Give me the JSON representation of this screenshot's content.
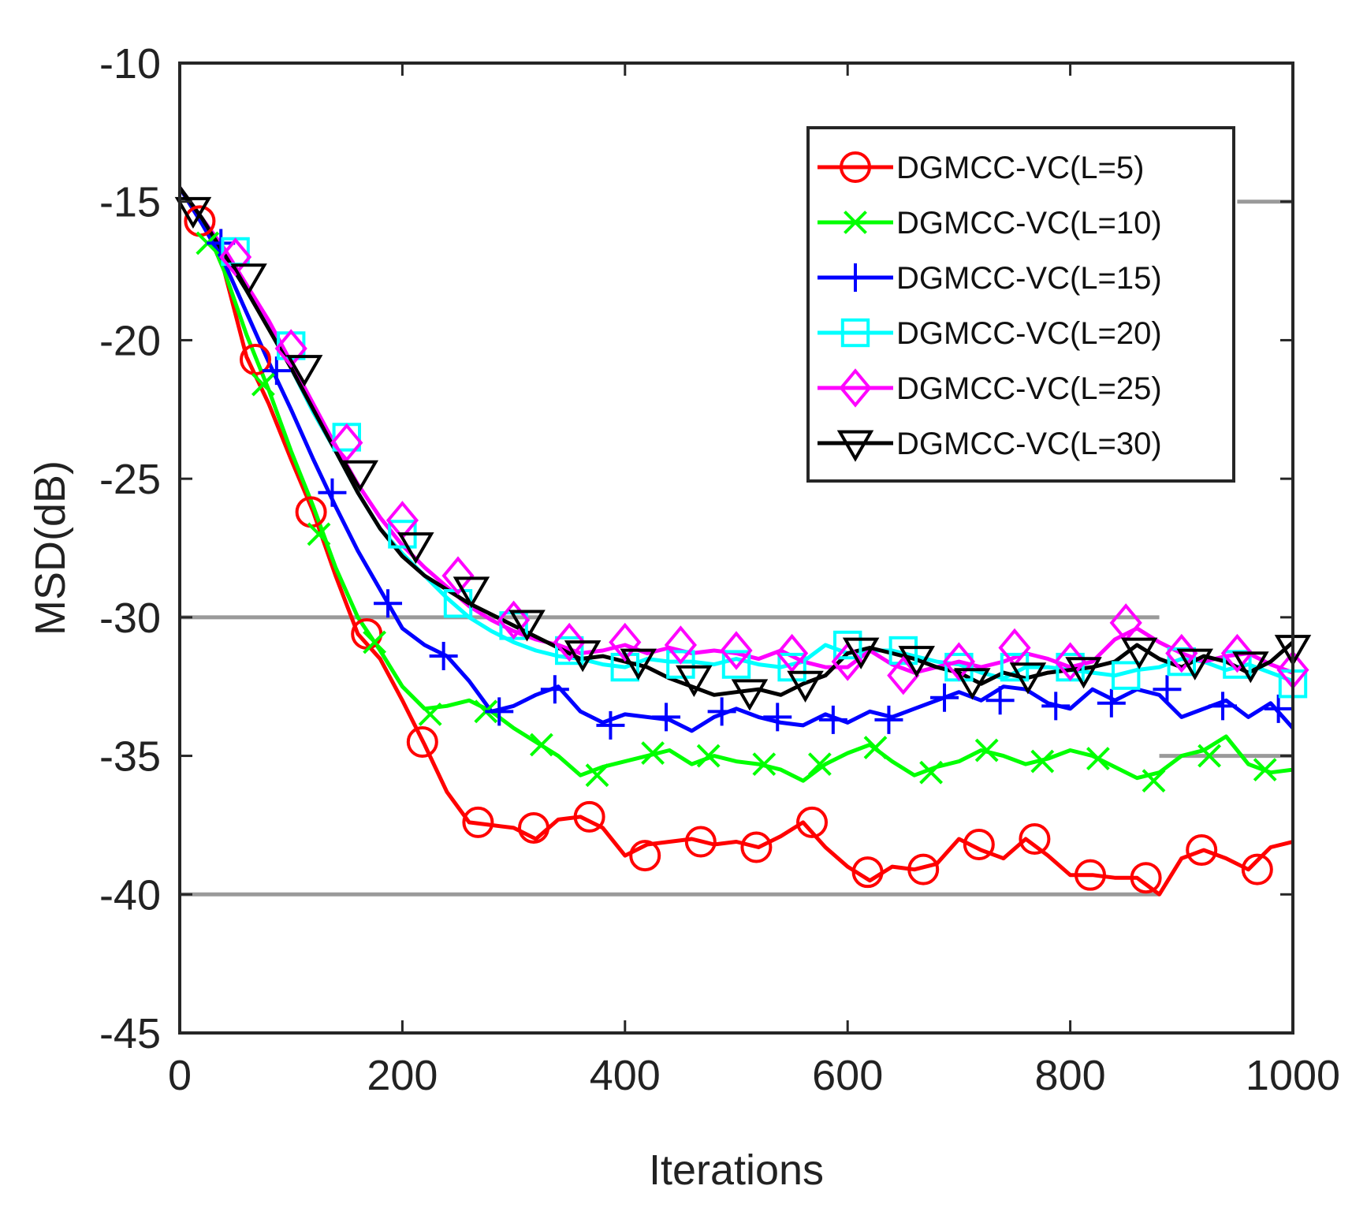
{
  "chart_data": {
    "type": "line",
    "xlabel": "Iterations",
    "ylabel": "MSD(dB)",
    "xlim": [
      0,
      1000
    ],
    "ylim": [
      -45,
      -10
    ],
    "xticks": [
      0,
      200,
      400,
      600,
      800,
      1000
    ],
    "yticks": [
      -10,
      -15,
      -20,
      -25,
      -30,
      -35,
      -40,
      -45
    ],
    "xtick_labels": [
      "0",
      "200",
      "400",
      "600",
      "800",
      "1000"
    ],
    "ytick_labels": [
      "-10",
      "-15",
      "-20",
      "-25",
      "-30",
      "-35",
      "-40",
      "-45"
    ],
    "legend_position": "top-right",
    "grid_lines": [
      {
        "y": -15,
        "x_range": [
          950,
          1000
        ]
      },
      {
        "y": -30,
        "x_range": [
          0,
          880
        ]
      },
      {
        "y": -35,
        "x_range": [
          880,
          1000
        ]
      },
      {
        "y": -40,
        "x_range": [
          0,
          880
        ]
      }
    ],
    "series": [
      {
        "name": "DGMCC-VC(L=5)",
        "color": "#ff0000",
        "marker": "circle",
        "x": [
          0,
          20,
          40,
          60,
          80,
          100,
          120,
          140,
          160,
          180,
          200,
          220,
          240,
          260,
          280,
          300,
          320,
          340,
          360,
          380,
          400,
          420,
          440,
          460,
          480,
          500,
          520,
          540,
          560,
          580,
          600,
          620,
          640,
          660,
          680,
          700,
          720,
          740,
          760,
          780,
          800,
          820,
          840,
          860,
          880,
          900,
          920,
          940,
          960,
          980,
          1000
        ],
        "y": [
          -14.5,
          -15.6,
          -17.5,
          -20.6,
          -22.3,
          -24.3,
          -26.2,
          -28.5,
          -30.6,
          -31.5,
          -33.0,
          -34.6,
          -36.3,
          -37.4,
          -37.5,
          -37.6,
          -38.0,
          -37.3,
          -37.2,
          -37.6,
          -38.6,
          -38.2,
          -38.1,
          -38.0,
          -38.2,
          -38.1,
          -38.3,
          -37.9,
          -37.4,
          -38.3,
          -39.0,
          -39.5,
          -39.0,
          -39.1,
          -38.9,
          -38.0,
          -38.4,
          -38.7,
          -38.0,
          -38.6,
          -39.3,
          -39.3,
          -39.4,
          -39.4,
          -40.0,
          -38.7,
          -38.4,
          -38.7,
          -39.1,
          -38.3,
          -38.1
        ],
        "marker_x": [
          18,
          68,
          118,
          168,
          218,
          268,
          318,
          368,
          418,
          468,
          518,
          568,
          618,
          668,
          718,
          768,
          818,
          868,
          918,
          968
        ],
        "marker_y": [
          -15.7,
          -20.7,
          -26.2,
          -30.6,
          -34.5,
          -37.4,
          -37.6,
          -37.2,
          -38.6,
          -38.1,
          -38.3,
          -37.4,
          -39.2,
          -39.1,
          -38.2,
          -38.0,
          -39.3,
          -39.4,
          -38.4,
          -39.1
        ]
      },
      {
        "name": "DGMCC-VC(L=10)",
        "color": "#00ff00",
        "marker": "x",
        "x": [
          0,
          20,
          40,
          60,
          80,
          100,
          120,
          140,
          160,
          180,
          200,
          220,
          240,
          260,
          280,
          300,
          320,
          340,
          360,
          380,
          400,
          420,
          440,
          460,
          480,
          500,
          520,
          540,
          560,
          580,
          600,
          620,
          640,
          660,
          680,
          700,
          720,
          740,
          760,
          780,
          800,
          820,
          840,
          860,
          880,
          900,
          920,
          940,
          960,
          980,
          1000
        ],
        "y": [
          -14.5,
          -15.6,
          -17.5,
          -19.8,
          -21.8,
          -24.0,
          -26.0,
          -28.2,
          -30.0,
          -31.2,
          -32.5,
          -33.3,
          -33.2,
          -33.0,
          -33.4,
          -34.0,
          -34.5,
          -35.0,
          -35.7,
          -35.4,
          -35.2,
          -35.0,
          -34.8,
          -35.3,
          -35.0,
          -35.2,
          -35.3,
          -35.5,
          -35.9,
          -35.3,
          -34.9,
          -34.6,
          -35.2,
          -35.7,
          -35.4,
          -35.2,
          -34.8,
          -35.0,
          -35.3,
          -35.1,
          -34.8,
          -35.0,
          -35.4,
          -35.8,
          -35.6,
          -35.0,
          -34.8,
          -34.3,
          -35.3,
          -35.6,
          -35.5
        ],
        "marker_x": [
          25,
          75,
          125,
          175,
          225,
          275,
          325,
          375,
          425,
          475,
          525,
          575,
          625,
          675,
          725,
          775,
          825,
          875,
          925,
          975
        ],
        "marker_y": [
          -16.5,
          -21.6,
          -27.0,
          -30.9,
          -33.5,
          -33.4,
          -34.6,
          -35.7,
          -34.9,
          -35.0,
          -35.3,
          -35.3,
          -34.7,
          -35.6,
          -34.8,
          -35.2,
          -35.1,
          -35.9,
          -35.0,
          -35.5
        ]
      },
      {
        "name": "DGMCC-VC(L=15)",
        "color": "#0000ff",
        "marker": "plus",
        "x": [
          0,
          20,
          40,
          60,
          80,
          100,
          120,
          140,
          160,
          180,
          200,
          220,
          240,
          260,
          280,
          300,
          320,
          340,
          360,
          380,
          400,
          420,
          440,
          460,
          480,
          500,
          520,
          540,
          560,
          580,
          600,
          620,
          640,
          660,
          680,
          700,
          720,
          740,
          760,
          780,
          800,
          820,
          840,
          860,
          880,
          900,
          920,
          940,
          960,
          980,
          1000
        ],
        "y": [
          -14.5,
          -15.8,
          -17.2,
          -19.0,
          -20.8,
          -22.5,
          -24.3,
          -26.0,
          -27.6,
          -29.0,
          -30.4,
          -31.0,
          -31.4,
          -32.3,
          -33.4,
          -33.2,
          -32.8,
          -32.5,
          -33.4,
          -33.8,
          -33.5,
          -33.6,
          -33.7,
          -34.1,
          -33.6,
          -33.3,
          -33.6,
          -33.8,
          -33.9,
          -33.5,
          -33.8,
          -33.4,
          -33.6,
          -33.3,
          -33.0,
          -32.7,
          -33.0,
          -32.5,
          -32.6,
          -33.1,
          -33.3,
          -32.6,
          -33.0,
          -32.6,
          -32.8,
          -33.6,
          -33.3,
          -33.0,
          -33.6,
          -33.1,
          -34.0
        ],
        "marker_x": [
          37,
          87,
          137,
          187,
          237,
          287,
          337,
          387,
          437,
          487,
          537,
          587,
          637,
          687,
          737,
          787,
          837,
          887,
          937,
          987
        ],
        "marker_y": [
          -16.5,
          -21.1,
          -25.5,
          -29.5,
          -31.4,
          -33.4,
          -32.6,
          -33.9,
          -33.6,
          -33.4,
          -33.6,
          -33.7,
          -33.7,
          -32.9,
          -33.0,
          -33.2,
          -33.1,
          -32.6,
          -33.2,
          -33.3
        ]
      },
      {
        "name": "DGMCC-VC(L=20)",
        "color": "#00ffff",
        "marker": "square",
        "x": [
          0,
          20,
          40,
          60,
          80,
          100,
          120,
          140,
          160,
          180,
          200,
          220,
          240,
          260,
          280,
          300,
          320,
          340,
          360,
          380,
          400,
          420,
          440,
          460,
          480,
          500,
          520,
          540,
          560,
          580,
          600,
          620,
          640,
          660,
          680,
          700,
          720,
          740,
          760,
          780,
          800,
          820,
          840,
          860,
          880,
          900,
          920,
          940,
          960,
          980,
          1000
        ],
        "y": [
          -14.5,
          -15.6,
          -16.9,
          -18.2,
          -19.5,
          -21.0,
          -22.6,
          -24.0,
          -25.5,
          -26.8,
          -27.7,
          -28.5,
          -29.3,
          -30.0,
          -30.5,
          -30.9,
          -31.2,
          -31.4,
          -31.5,
          -31.7,
          -31.8,
          -31.5,
          -31.6,
          -31.6,
          -31.7,
          -31.5,
          -31.7,
          -31.8,
          -31.6,
          -31.0,
          -31.3,
          -31.2,
          -31.2,
          -31.4,
          -31.6,
          -31.7,
          -32.0,
          -32.2,
          -31.8,
          -31.8,
          -31.9,
          -32.0,
          -32.1,
          -31.9,
          -31.8,
          -31.5,
          -31.6,
          -31.9,
          -31.7,
          -32.0,
          -32.3
        ],
        "marker_x": [
          50,
          100,
          150,
          200,
          250,
          300,
          350,
          400,
          450,
          500,
          550,
          600,
          650,
          700,
          750,
          800,
          850,
          900,
          950,
          1000
        ],
        "marker_y": [
          -16.8,
          -20.2,
          -23.5,
          -27.0,
          -29.5,
          -30.3,
          -31.2,
          -31.8,
          -31.7,
          -31.7,
          -31.8,
          -31.0,
          -31.2,
          -31.8,
          -31.8,
          -31.8,
          -32.1,
          -31.6,
          -31.7,
          -32.4
        ]
      },
      {
        "name": "DGMCC-VC(L=25)",
        "color": "#ff00ff",
        "marker": "diamond",
        "x": [
          0,
          20,
          40,
          60,
          80,
          100,
          120,
          140,
          160,
          180,
          200,
          220,
          240,
          260,
          280,
          300,
          320,
          340,
          360,
          380,
          400,
          420,
          440,
          460,
          480,
          500,
          520,
          540,
          560,
          580,
          600,
          620,
          640,
          660,
          680,
          700,
          720,
          740,
          760,
          780,
          800,
          820,
          840,
          860,
          880,
          900,
          920,
          940,
          960,
          980,
          1000
        ],
        "y": [
          -14.5,
          -15.6,
          -16.7,
          -18.0,
          -19.3,
          -20.8,
          -22.3,
          -23.8,
          -25.2,
          -26.4,
          -27.4,
          -28.2,
          -28.9,
          -29.6,
          -30.1,
          -30.5,
          -30.8,
          -31.0,
          -31.3,
          -31.2,
          -31.0,
          -31.3,
          -31.1,
          -31.3,
          -31.2,
          -31.3,
          -31.5,
          -31.2,
          -31.6,
          -31.8,
          -31.8,
          -31.2,
          -31.7,
          -32.0,
          -31.8,
          -31.6,
          -31.8,
          -31.6,
          -31.3,
          -31.5,
          -31.8,
          -31.6,
          -30.8,
          -30.4,
          -30.9,
          -31.3,
          -31.6,
          -31.4,
          -31.3,
          -31.7,
          -32.0
        ],
        "marker_x": [
          50,
          100,
          150,
          200,
          250,
          300,
          350,
          400,
          450,
          500,
          550,
          600,
          650,
          700,
          750,
          800,
          850,
          900,
          950,
          1000
        ],
        "marker_y": [
          -17.0,
          -20.3,
          -23.7,
          -26.5,
          -28.5,
          -30.1,
          -30.9,
          -30.9,
          -31.0,
          -31.2,
          -31.3,
          -31.6,
          -32.1,
          -31.6,
          -31.1,
          -31.6,
          -30.2,
          -31.3,
          -31.3,
          -31.9
        ]
      },
      {
        "name": "DGMCC-VC(L=30)",
        "color": "#000000",
        "marker": "triangle-down",
        "x": [
          0,
          20,
          40,
          60,
          80,
          100,
          120,
          140,
          160,
          180,
          200,
          220,
          240,
          260,
          280,
          300,
          320,
          340,
          360,
          380,
          400,
          420,
          440,
          460,
          480,
          500,
          520,
          540,
          560,
          580,
          600,
          620,
          640,
          660,
          680,
          700,
          720,
          740,
          760,
          780,
          800,
          820,
          840,
          860,
          880,
          900,
          920,
          940,
          960,
          980,
          1000
        ],
        "y": [
          -14.5,
          -15.6,
          -16.9,
          -18.2,
          -19.6,
          -21.0,
          -22.5,
          -24.0,
          -25.5,
          -26.8,
          -27.8,
          -28.5,
          -29.0,
          -29.5,
          -29.9,
          -30.3,
          -30.7,
          -31.1,
          -31.5,
          -31.4,
          -31.6,
          -31.8,
          -32.2,
          -32.5,
          -32.8,
          -32.7,
          -32.6,
          -32.8,
          -32.4,
          -32.1,
          -31.3,
          -31.1,
          -31.3,
          -31.5,
          -31.8,
          -32.0,
          -32.4,
          -32.0,
          -32.2,
          -32.0,
          -31.9,
          -31.8,
          -31.6,
          -31.0,
          -31.5,
          -31.8,
          -31.4,
          -31.6,
          -32.0,
          -31.6,
          -30.9
        ],
        "marker_x": [
          12,
          62,
          112,
          162,
          212,
          262,
          312,
          362,
          412,
          462,
          512,
          562,
          612,
          662,
          712,
          762,
          812,
          862,
          912,
          962,
          1000
        ],
        "marker_y": [
          -15.3,
          -17.7,
          -21.0,
          -24.8,
          -27.4,
          -29.0,
          -30.2,
          -31.3,
          -31.6,
          -32.2,
          -32.7,
          -32.4,
          -31.2,
          -31.5,
          -32.3,
          -32.1,
          -31.9,
          -31.2,
          -31.6,
          -31.7,
          -31.1
        ]
      }
    ]
  }
}
